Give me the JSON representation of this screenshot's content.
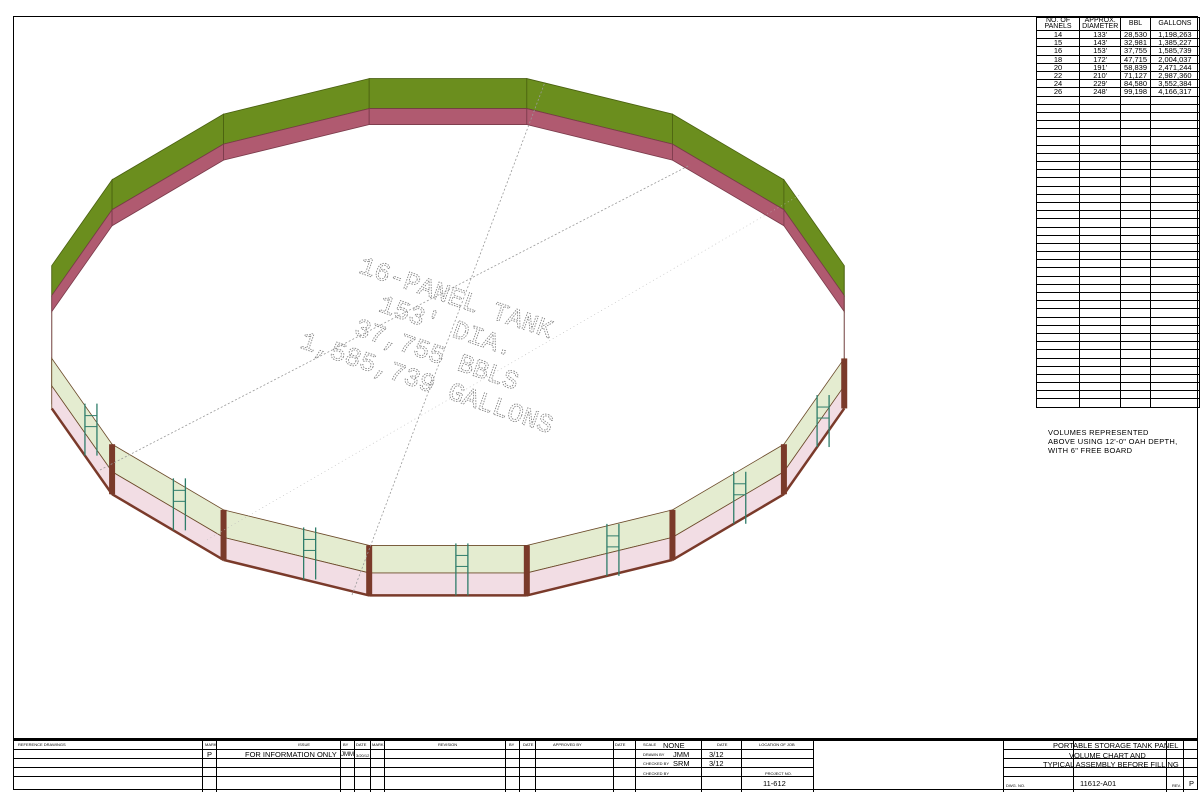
{
  "drawing": {
    "tank_label_lines": [
      "16-PANEL TANK",
      "153' DIA.",
      "37,755 BBLS",
      "1,585,739 GALLONS"
    ],
    "panel_count": 16,
    "colors": {
      "inner_upper": "#6b8e1e",
      "inner_lower": "#b05a70",
      "outer_upper": "#e4ecd0",
      "outer_lower": "#f2dde4",
      "post": "#7a3a2a",
      "ladder": "#2e7d6a"
    }
  },
  "volume_table": {
    "headers": [
      "NO. OF PANELS",
      "APPROX. DIAMETER",
      "BBL",
      "GALLONS"
    ],
    "rows": [
      [
        "14",
        "133'",
        "28,530",
        "1,198,263"
      ],
      [
        "15",
        "143'",
        "32,981",
        "1,385,227"
      ],
      [
        "16",
        "153'",
        "37,755",
        "1,585,739"
      ],
      [
        "18",
        "172'",
        "47,715",
        "2,004,037"
      ],
      [
        "20",
        "191'",
        "58,839",
        "2,471,244"
      ],
      [
        "22",
        "210'",
        "71,127",
        "2,987,360"
      ],
      [
        "24",
        "229'",
        "84,580",
        "3,552,384"
      ],
      [
        "26",
        "248'",
        "99,198",
        "4,166,317"
      ]
    ],
    "note": "VOLUMES REPRESENTED ABOVE USING 12'-0\" OAH DEPTH, WITH 6\" FREE BOARD"
  },
  "title_block": {
    "reference_drawings": "REFERENCE DRAWINGS",
    "mark": "MARK",
    "issue": "ISSUE",
    "by": "BY",
    "date": "DATE",
    "revision": "REVISION",
    "approved_by": "APPROVED BY",
    "issue_mark": "P",
    "issue_text": "FOR INFORMATION ONLY",
    "issue_by": "JMM",
    "issue_date": "3/20/12",
    "scale_label": "SCALE",
    "scale": "NONE",
    "drawn_by_label": "DRAWN BY",
    "drawn_by": "JMM",
    "drawn_date": "3/12",
    "checked_by_label": "CHECKED BY",
    "checked_by": "SRM",
    "checked_date": "3/12",
    "checked_by2_label": "CHECKED BY",
    "location_label": "LOCATION OF JOB",
    "project_no_label": "PROJECT NO.",
    "project_no": "11-612",
    "title_lines": [
      "PORTABLE STORAGE TANK PANEL",
      "VOLUME CHART AND",
      "TYPICAL ASSEMBLY BEFORE FILLING"
    ],
    "dwg_no_label": "DWG. NO.",
    "dwg_no": "11612-A01",
    "rev_label": "REV.",
    "rev": "P"
  }
}
